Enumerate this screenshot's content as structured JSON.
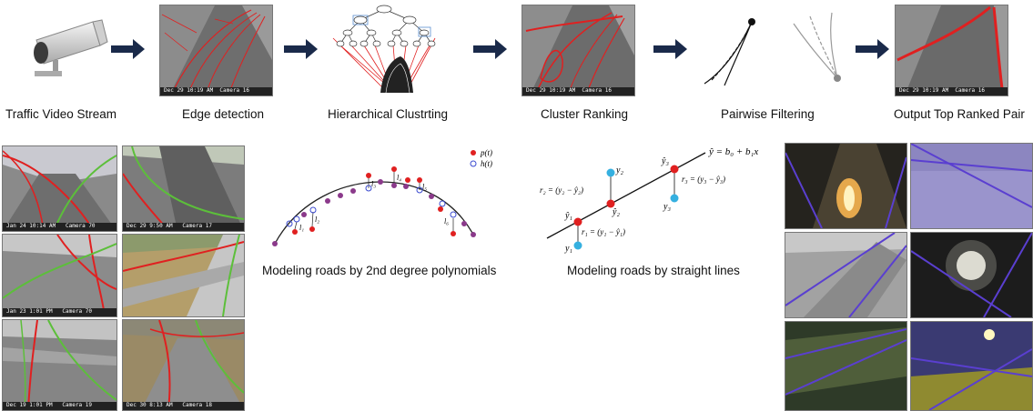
{
  "pipeline": {
    "steps": [
      {
        "label": "Traffic Video Stream"
      },
      {
        "label": "Edge detection"
      },
      {
        "label": "Hierarchical Clustrting"
      },
      {
        "label": "Cluster Ranking"
      },
      {
        "label": "Pairwise Filtering"
      },
      {
        "label": "Output Top Ranked Pair"
      }
    ],
    "stamp_edge": "Dec 29 10:19 AM",
    "stamp_edge_cam": "Camera 16",
    "stamp_rank": "Dec 29 10:19 AM",
    "stamp_rank_cam": "Camera 16",
    "stamp_out": "Dec 29 10:19 AM",
    "stamp_out_cam": "Camera 16"
  },
  "left_grid": {
    "stamps": [
      {
        "text": "Jan 24 10:14 AM",
        "cam": "Camera 70"
      },
      {
        "text": "Dec 29 9:50 AM",
        "cam": "Camera 17"
      },
      {
        "text": "Jan 23 1:01 PM",
        "cam": "Camera 70"
      },
      {
        "text": "",
        "cam": ""
      },
      {
        "text": "Dec 19 1:01 PM",
        "cam": "Camera 19"
      },
      {
        "text": "Dec 30 8:13 AM",
        "cam": "Camera 18"
      }
    ]
  },
  "poly_diagram": {
    "caption": "Modeling roads by 2nd degree polynomials",
    "legend_p": "p(t)",
    "legend_h": "h(t)",
    "labels": [
      "l₁",
      "l₂",
      "l₃",
      "l₄",
      "l₅",
      "l₆"
    ]
  },
  "line_diagram": {
    "caption": "Modeling roads by straight lines",
    "equation": "ŷ = b₀ + b₁x",
    "r1": "r₁ = (y₁ − ŷ₁)",
    "r2": "r₂ = (y₂ − ŷ₂)",
    "r3": "r₃ = (y₃ − ŷ₃)",
    "y1": "y₁",
    "y2": "y₂",
    "y3": "y₃",
    "yh1": "ŷ₁",
    "yh2": "ŷ₂",
    "yh3": "ŷ₃"
  },
  "colors": {
    "arrow": "#1a2a4a",
    "red": "#e02020",
    "green": "#5cbf3a",
    "purple": "#5a3fd0",
    "blue_point": "#35b0e0"
  }
}
